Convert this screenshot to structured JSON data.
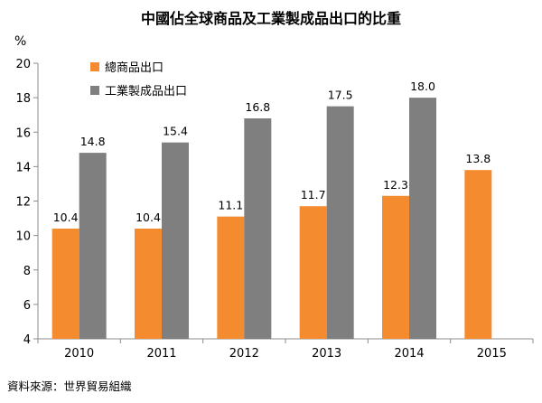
{
  "chart_data": {
    "type": "bar",
    "title": "中國佔全球商品及工業製成品出口的比重",
    "ylabel": "%",
    "xlabel": "",
    "ylim": [
      4,
      20
    ],
    "yticks": [
      4,
      6,
      8,
      10,
      12,
      14,
      16,
      18,
      20
    ],
    "categories": [
      "2010",
      "2011",
      "2012",
      "2013",
      "2014",
      "2015"
    ],
    "series": [
      {
        "name": "總商品出口",
        "color": "#f58b2f",
        "values": [
          10.4,
          10.4,
          11.1,
          11.7,
          12.3,
          13.8
        ],
        "labels": [
          "10.4",
          "10.4",
          "11.1",
          "11.7",
          "12.3",
          "13.8"
        ]
      },
      {
        "name": "工業製成品出口",
        "color": "#7f7f7f",
        "values": [
          14.8,
          15.4,
          16.8,
          17.5,
          18.0,
          null
        ],
        "labels": [
          "14.8",
          "15.4",
          "16.8",
          "17.5",
          "18.0",
          null
        ]
      }
    ],
    "legend_position": "top-left",
    "grid": false
  },
  "source": "資料來源：世界貿易組織"
}
